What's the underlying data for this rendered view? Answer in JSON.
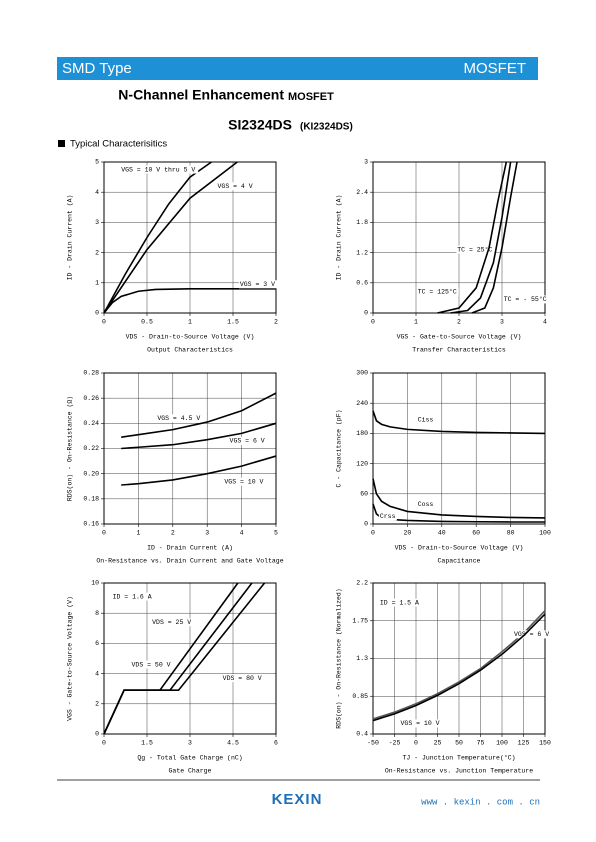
{
  "header": {
    "left": "SMD   Type",
    "right": "MOSFET"
  },
  "title": "N-Channel Enhancement",
  "title_tag": "MOSFET",
  "part": "SI2324DS",
  "part_alt": "(KI2324DS)",
  "section": "Typical  Characterisitics",
  "chart_data": [
    {
      "type": "line",
      "caption": "Output Characteristics",
      "xlabel": "VDS - Drain-to-Source Voltage (V)",
      "ylabel": "ID - Drain Current (A)",
      "xlim": [
        0,
        2
      ],
      "xticks": [
        0,
        0.5,
        1,
        1.5,
        2
      ],
      "ylim": [
        0,
        5
      ],
      "yticks": [
        0,
        1,
        2,
        3,
        4,
        5
      ],
      "grid": true,
      "series": [
        {
          "name": "VGS = 10 V thru 5 V",
          "color": "#000000",
          "x": [
            0,
            0.25,
            0.5,
            0.75,
            1.0,
            1.25
          ],
          "values": [
            0,
            1.3,
            2.5,
            3.6,
            4.5,
            5
          ]
        },
        {
          "name": "VGS = 4 V",
          "color": "#000000",
          "x": [
            0,
            0.5,
            1.0,
            1.55
          ],
          "values": [
            0,
            2.1,
            3.8,
            5
          ]
        },
        {
          "name": "VGS = 3 V",
          "color": "#000000",
          "x": [
            0,
            0.1,
            0.2,
            0.4,
            0.6,
            1.0,
            1.5,
            2.0
          ],
          "values": [
            0,
            0.35,
            0.55,
            0.72,
            0.78,
            0.8,
            0.8,
            0.8
          ]
        }
      ]
    },
    {
      "type": "line",
      "caption": "Transfer Characteristics",
      "xlabel": "VGS - Gate-to-Source Voltage (V)",
      "ylabel": "ID - Drain Current (A)",
      "xlim": [
        0,
        4
      ],
      "xticks": [
        0,
        1,
        2,
        3,
        4
      ],
      "ylim": [
        0,
        3
      ],
      "yticks": [
        0,
        0.6,
        1.2,
        1.8,
        2.4,
        3
      ],
      "grid": true,
      "series": [
        {
          "name": "TC = 25°C",
          "color": "#000000",
          "x": [
            1.8,
            2.2,
            2.5,
            2.8,
            3.0,
            3.2
          ],
          "values": [
            0,
            0.05,
            0.3,
            1.0,
            1.9,
            3
          ]
        },
        {
          "name": "TC = 125°C",
          "color": "#000000",
          "x": [
            1.5,
            2.0,
            2.4,
            2.7,
            2.9,
            3.1
          ],
          "values": [
            0,
            0.1,
            0.5,
            1.3,
            2.2,
            3
          ]
        },
        {
          "name": "TC = - 55°C",
          "color": "#000000",
          "x": [
            2.3,
            2.6,
            2.8,
            3.0,
            3.2,
            3.35
          ],
          "values": [
            0,
            0.1,
            0.5,
            1.3,
            2.3,
            3
          ]
        }
      ]
    },
    {
      "type": "line",
      "caption": "On-Resistance vs. Drain Current and Gate Voltage",
      "xlabel": "ID - Drain Current (A)",
      "ylabel": "RDS(on) - On-Resistance (Ω)",
      "xlim": [
        0,
        5
      ],
      "xticks": [
        0,
        1,
        2,
        3,
        4,
        5
      ],
      "ylim": [
        0.16,
        0.28
      ],
      "yticks": [
        0.16,
        0.18,
        {
          "value": 0.2,
          "label": "0.20"
        },
        0.22,
        0.24,
        0.26,
        0.28
      ],
      "grid": true,
      "series": [
        {
          "name": "VGS = 4.5 V",
          "color": "#000000",
          "x": [
            0.5,
            1,
            2,
            3,
            4,
            5
          ],
          "values": [
            0.229,
            0.231,
            0.235,
            0.241,
            0.25,
            0.264
          ]
        },
        {
          "name": "VGS = 6 V",
          "color": "#000000",
          "x": [
            0.5,
            1,
            2,
            3,
            4,
            5
          ],
          "values": [
            0.22,
            0.221,
            0.223,
            0.227,
            0.232,
            0.24
          ]
        },
        {
          "name": "VGS = 10 V",
          "color": "#000000",
          "x": [
            0.5,
            1,
            2,
            3,
            4,
            5
          ],
          "values": [
            0.191,
            0.192,
            0.195,
            0.2,
            0.206,
            0.214
          ]
        }
      ]
    },
    {
      "type": "line",
      "caption": "Capacitance",
      "xlabel": "VDS - Drain-to-Source Voltage (V)",
      "ylabel": "C - Capacitance (pF)",
      "xlim": [
        0,
        100
      ],
      "xticks": [
        0,
        20,
        40,
        60,
        80,
        100
      ],
      "ylim": [
        0,
        300
      ],
      "yticks": [
        0,
        60,
        120,
        180,
        240,
        300
      ],
      "grid": true,
      "series": [
        {
          "name": "Ciss",
          "color": "#000000",
          "x": [
            0,
            2,
            5,
            10,
            20,
            40,
            60,
            80,
            100
          ],
          "values": [
            225,
            205,
            198,
            193,
            188,
            184,
            182,
            181,
            180
          ]
        },
        {
          "name": "Coss",
          "color": "#000000",
          "x": [
            0,
            2,
            5,
            10,
            20,
            40,
            60,
            80,
            100
          ],
          "values": [
            90,
            60,
            45,
            35,
            25,
            18,
            15,
            13,
            12
          ]
        },
        {
          "name": "Crss",
          "color": "#000000",
          "x": [
            0,
            2,
            5,
            10,
            20,
            40,
            60,
            80,
            100
          ],
          "values": [
            40,
            20,
            12,
            9,
            7,
            5,
            4.5,
            4,
            4
          ]
        }
      ]
    },
    {
      "type": "line",
      "caption": "Gate Charge",
      "xlabel": "Qg - Total Gate Charge (nC)",
      "ylabel": "VGS - Gate-to-Source Voltage (V)",
      "annotation": "ID = 1.6 A",
      "xlim": [
        0,
        6
      ],
      "xticks": [
        0,
        1.5,
        3,
        4.5,
        6
      ],
      "ylim": [
        0,
        10
      ],
      "yticks": [
        0,
        2,
        4,
        6,
        8,
        10
      ],
      "grid": true,
      "series": [
        {
          "name": "VDS = 25 V",
          "color": "#000000",
          "x": [
            0,
            0.7,
            1.95,
            4.67
          ],
          "values": [
            0,
            2.9,
            2.9,
            10
          ]
        },
        {
          "name": "VDS = 50 V",
          "color": "#000000",
          "x": [
            0,
            0.7,
            2.3,
            5.16
          ],
          "values": [
            0,
            2.9,
            2.9,
            10
          ]
        },
        {
          "name": "VDS = 80 V",
          "color": "#000000",
          "x": [
            0,
            0.7,
            2.6,
            5.6
          ],
          "values": [
            0,
            2.9,
            2.9,
            10
          ]
        }
      ]
    },
    {
      "type": "line",
      "caption": "On-Resistance vs. Junction Temperature",
      "xlabel": "TJ - Junction Temperature(°C)",
      "ylabel": "RDS(on) - On-Resistance (Normalized)",
      "annotation": "ID = 1.5 A",
      "xlim": [
        -50,
        150
      ],
      "xticks": [
        -50,
        -25,
        0,
        25,
        50,
        75,
        100,
        125,
        150
      ],
      "ylim": [
        0.4,
        2.2
      ],
      "yticks": [
        0.4,
        0.85,
        1.3,
        1.75,
        2.2
      ],
      "grid": true,
      "series": [
        {
          "name": "VGS = 6 V",
          "color": "#555555",
          "x": [
            -50,
            -25,
            0,
            25,
            50,
            75,
            100,
            125,
            150
          ],
          "values": [
            0.58,
            0.66,
            0.76,
            0.88,
            1.02,
            1.18,
            1.38,
            1.6,
            1.87
          ]
        },
        {
          "name": "VGS = 10 V",
          "color": "#000000",
          "x": [
            -50,
            -25,
            0,
            25,
            50,
            75,
            100,
            125,
            150
          ],
          "values": [
            0.56,
            0.64,
            0.74,
            0.86,
            1.0,
            1.16,
            1.35,
            1.57,
            1.83
          ]
        }
      ]
    }
  ],
  "footer": {
    "logo": "KEXIN",
    "url": "www . kexin . com . cn"
  }
}
